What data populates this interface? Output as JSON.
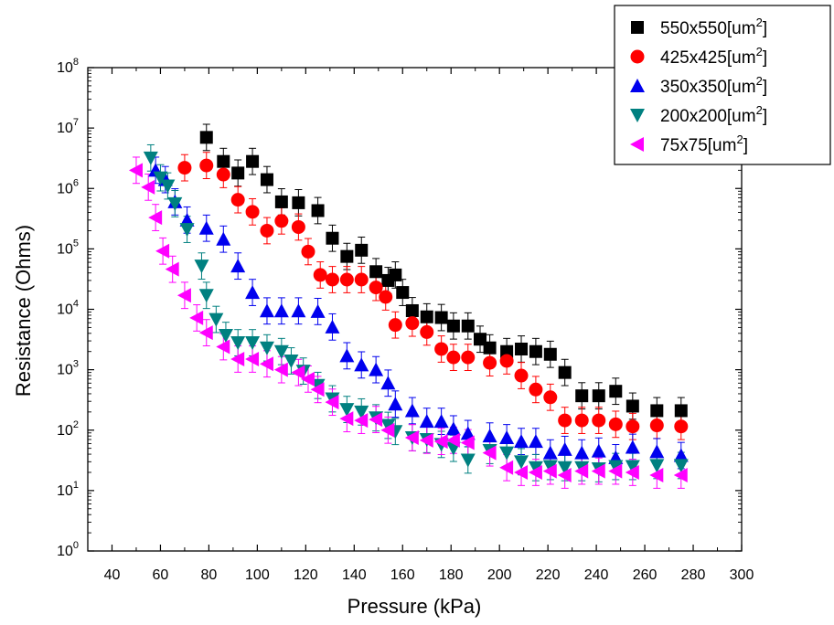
{
  "chart_data": {
    "type": "scatter",
    "x_axis": {
      "label": "Pressure (kPa)",
      "range": [
        30,
        300
      ],
      "ticks": [
        40,
        60,
        80,
        100,
        120,
        140,
        160,
        180,
        200,
        220,
        240,
        260,
        280,
        300
      ]
    },
    "y_axis": {
      "label": "Resistance (Ohms)",
      "scale": "log",
      "range": [
        1,
        100000000
      ],
      "ticks": [
        {
          "base": "10",
          "exp": "0",
          "value": 1
        },
        {
          "base": "10",
          "exp": "1",
          "value": 10
        },
        {
          "base": "10",
          "exp": "2",
          "value": 100
        },
        {
          "base": "10",
          "exp": "3",
          "value": 1000
        },
        {
          "base": "10",
          "exp": "4",
          "value": 10000
        },
        {
          "base": "10",
          "exp": "5",
          "value": 100000
        },
        {
          "base": "10",
          "exp": "6",
          "value": 1000000
        },
        {
          "base": "10",
          "exp": "7",
          "value": 10000000
        },
        {
          "base": "10",
          "exp": "8",
          "value": 100000000
        }
      ]
    },
    "legend": {
      "position": "top-right"
    },
    "series": [
      {
        "name": "550x550[um2]",
        "label_prefix": "550x550[um",
        "label_sup": "2",
        "label_suffix": "]",
        "marker": "square",
        "color": "#000000",
        "points": [
          [
            79,
            7000000
          ],
          [
            86,
            2800000
          ],
          [
            92,
            1800000
          ],
          [
            98,
            2800000
          ],
          [
            104,
            1400000
          ],
          [
            110,
            600000
          ],
          [
            117,
            580000
          ],
          [
            125,
            430000
          ],
          [
            131,
            150000
          ],
          [
            137,
            75000
          ],
          [
            143,
            95000
          ],
          [
            149,
            42000
          ],
          [
            154,
            30000
          ],
          [
            157,
            37000
          ],
          [
            160,
            19000
          ],
          [
            164,
            9500
          ],
          [
            170,
            7500
          ],
          [
            176,
            7300
          ],
          [
            181,
            5300
          ],
          [
            187,
            5300
          ],
          [
            192,
            3200
          ],
          [
            196,
            2300
          ],
          [
            203,
            2000
          ],
          [
            209,
            2200
          ],
          [
            215,
            2000
          ],
          [
            221,
            1800
          ],
          [
            227,
            900
          ],
          [
            234,
            370
          ],
          [
            241,
            370
          ],
          [
            248,
            440
          ],
          [
            255,
            250
          ],
          [
            265,
            210
          ],
          [
            275,
            210
          ]
        ]
      },
      {
        "name": "425x425[um2]",
        "label_prefix": "425x425[um",
        "label_sup": "2",
        "label_suffix": "]",
        "marker": "circle",
        "color": "#ff0000",
        "points": [
          [
            70,
            2200000
          ],
          [
            79,
            2400000
          ],
          [
            86,
            1700000
          ],
          [
            92,
            650000
          ],
          [
            98,
            410000
          ],
          [
            104,
            200000
          ],
          [
            110,
            290000
          ],
          [
            117,
            230000
          ],
          [
            121,
            90000
          ],
          [
            126,
            37000
          ],
          [
            131,
            31000
          ],
          [
            137,
            31000
          ],
          [
            143,
            31000
          ],
          [
            149,
            23000
          ],
          [
            153,
            16000
          ],
          [
            157,
            5500
          ],
          [
            164,
            5900
          ],
          [
            170,
            4200
          ],
          [
            176,
            2200
          ],
          [
            181,
            1600
          ],
          [
            187,
            1600
          ],
          [
            196,
            1300
          ],
          [
            203,
            1400
          ],
          [
            209,
            800
          ],
          [
            215,
            470
          ],
          [
            221,
            350
          ],
          [
            227,
            145
          ],
          [
            234,
            145
          ],
          [
            241,
            145
          ],
          [
            248,
            125
          ],
          [
            255,
            115
          ],
          [
            265,
            120
          ],
          [
            275,
            115
          ]
        ]
      },
      {
        "name": "350x350[um2]",
        "label_prefix": "350x350[um",
        "label_sup": "2",
        "label_suffix": "]",
        "marker": "triangle-up",
        "color": "#0000ee",
        "points": [
          [
            58,
            2000000
          ],
          [
            62,
            1400000
          ],
          [
            66,
            600000
          ],
          [
            71,
            300000
          ],
          [
            79,
            220000
          ],
          [
            86,
            145000
          ],
          [
            92,
            52000
          ],
          [
            98,
            19000
          ],
          [
            104,
            9400
          ],
          [
            110,
            9400
          ],
          [
            117,
            9400
          ],
          [
            125,
            9200
          ],
          [
            131,
            5100
          ],
          [
            137,
            1700
          ],
          [
            143,
            1200
          ],
          [
            149,
            1000
          ],
          [
            154,
            600
          ],
          [
            157,
            270
          ],
          [
            164,
            210
          ],
          [
            170,
            140
          ],
          [
            176,
            140
          ],
          [
            181,
            105
          ],
          [
            187,
            88
          ],
          [
            196,
            80
          ],
          [
            203,
            75
          ],
          [
            209,
            65
          ],
          [
            215,
            65
          ],
          [
            221,
            42
          ],
          [
            227,
            48
          ],
          [
            234,
            42
          ],
          [
            241,
            45
          ],
          [
            248,
            35
          ],
          [
            255,
            52
          ],
          [
            265,
            44
          ],
          [
            275,
            38
          ]
        ]
      },
      {
        "name": "200x200[um2]",
        "label_prefix": "200x200[um",
        "label_sup": "2",
        "label_suffix": "]",
        "marker": "triangle-down",
        "color": "#008080",
        "points": [
          [
            56,
            3200000
          ],
          [
            60,
            1500000
          ],
          [
            63,
            1100000
          ],
          [
            66,
            560000
          ],
          [
            71,
            210000
          ],
          [
            77,
            52000
          ],
          [
            79,
            17000
          ],
          [
            83,
            6800
          ],
          [
            87,
            3700
          ],
          [
            92,
            2800
          ],
          [
            98,
            2800
          ],
          [
            104,
            2300
          ],
          [
            110,
            2000
          ],
          [
            114,
            1400
          ],
          [
            119,
            950
          ],
          [
            125,
            550
          ],
          [
            131,
            330
          ],
          [
            137,
            220
          ],
          [
            143,
            200
          ],
          [
            149,
            160
          ],
          [
            154,
            120
          ],
          [
            157,
            95
          ],
          [
            164,
            75
          ],
          [
            170,
            70
          ],
          [
            176,
            58
          ],
          [
            181,
            50
          ],
          [
            187,
            32
          ],
          [
            196,
            46
          ],
          [
            203,
            42
          ],
          [
            209,
            30
          ],
          [
            215,
            24
          ],
          [
            221,
            25
          ],
          [
            227,
            24
          ],
          [
            234,
            24
          ],
          [
            241,
            23
          ],
          [
            248,
            25
          ],
          [
            255,
            25
          ],
          [
            265,
            26
          ],
          [
            275,
            26
          ]
        ]
      },
      {
        "name": "75x75[um2]",
        "label_prefix": "75x75[um",
        "label_sup": "2",
        "label_suffix": "]",
        "marker": "triangle-left",
        "color": "#ff00ff",
        "points": [
          [
            50,
            2000000
          ],
          [
            55,
            1050000
          ],
          [
            58,
            330000
          ],
          [
            61,
            92000
          ],
          [
            65,
            46000
          ],
          [
            70,
            17000
          ],
          [
            75,
            7200
          ],
          [
            79,
            4100
          ],
          [
            86,
            2400
          ],
          [
            92,
            1500
          ],
          [
            98,
            1500
          ],
          [
            104,
            1250
          ],
          [
            110,
            1000
          ],
          [
            117,
            900
          ],
          [
            121,
            700
          ],
          [
            125,
            470
          ],
          [
            131,
            290
          ],
          [
            137,
            155
          ],
          [
            143,
            145
          ],
          [
            149,
            150
          ],
          [
            154,
            100
          ],
          [
            164,
            75
          ],
          [
            170,
            68
          ],
          [
            176,
            65
          ],
          [
            181,
            68
          ],
          [
            187,
            62
          ],
          [
            196,
            42
          ],
          [
            203,
            24
          ],
          [
            209,
            20
          ],
          [
            215,
            20
          ],
          [
            221,
            21
          ],
          [
            227,
            18
          ],
          [
            234,
            21
          ],
          [
            241,
            21
          ],
          [
            248,
            21
          ],
          [
            255,
            20
          ],
          [
            265,
            18
          ],
          [
            275,
            18
          ]
        ]
      }
    ]
  }
}
